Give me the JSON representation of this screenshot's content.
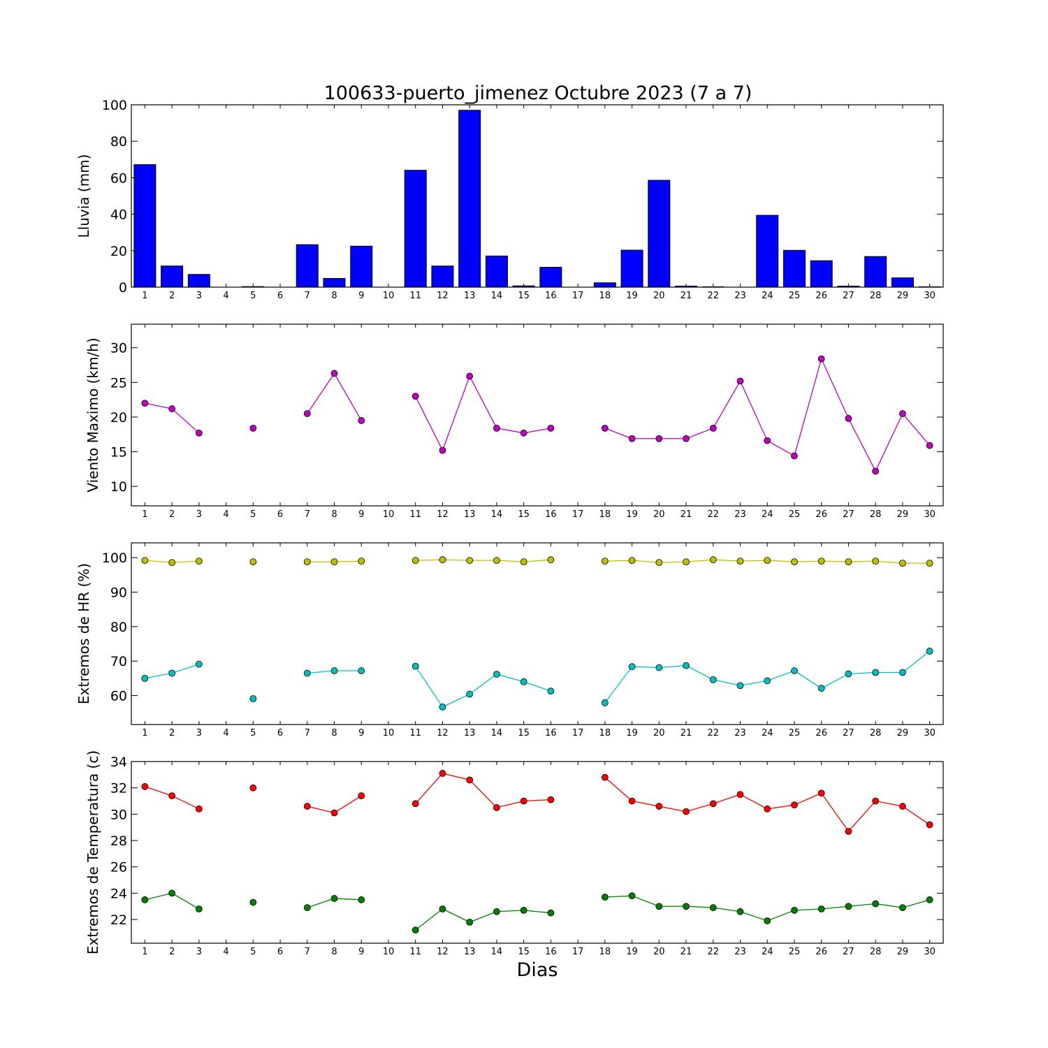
{
  "title": "100633-puerto_jimenez Octubre 2023  (7 a 7)",
  "xlabel": "Dias",
  "colors": {
    "bar_fill": "#0000ff",
    "wind": "#bf00bf",
    "hr_max": "#bfbf00",
    "hr_min": "#00bfbf",
    "temp_max": "#ff0000",
    "temp_min": "#008000"
  },
  "chart_data": [
    {
      "type": "bar",
      "ylabel": "Lluvia (mm)",
      "x": [
        1,
        2,
        3,
        4,
        5,
        6,
        7,
        8,
        9,
        10,
        11,
        12,
        13,
        14,
        15,
        16,
        17,
        18,
        19,
        20,
        21,
        22,
        23,
        24,
        25,
        26,
        27,
        28,
        29,
        30
      ],
      "values": [
        67.2,
        11.6,
        7.0,
        null,
        0.3,
        null,
        23.3,
        4.8,
        22.5,
        null,
        64.1,
        11.6,
        97.0,
        17.1,
        0.7,
        10.9,
        null,
        2.4,
        20.3,
        58.6,
        0.6,
        0.2,
        null,
        39.4,
        20.2,
        14.5,
        0.6,
        16.8,
        5.1,
        0.2
      ],
      "ylim": [
        0,
        100
      ],
      "yticks": [
        0,
        20,
        40,
        60,
        80,
        100
      ],
      "xticks": [
        1,
        2,
        3,
        4,
        5,
        6,
        7,
        8,
        9,
        10,
        11,
        12,
        13,
        14,
        15,
        16,
        17,
        18,
        19,
        20,
        21,
        22,
        23,
        24,
        25,
        26,
        27,
        28,
        29,
        30
      ],
      "xlim": [
        0.5,
        30.5
      ]
    },
    {
      "type": "line",
      "ylabel": "Viento Maximo (km/h)",
      "x": [
        1,
        2,
        3,
        4,
        5,
        6,
        7,
        8,
        9,
        10,
        11,
        12,
        13,
        14,
        15,
        16,
        17,
        18,
        19,
        20,
        21,
        22,
        23,
        24,
        25,
        26,
        27,
        28,
        29,
        30
      ],
      "series": [
        {
          "values": [
            22.0,
            21.2,
            17.7,
            null,
            18.4,
            null,
            20.5,
            26.3,
            19.5,
            null,
            23.0,
            15.2,
            25.9,
            18.4,
            17.7,
            18.4,
            null,
            18.4,
            16.9,
            16.9,
            16.9,
            18.4,
            25.2,
            16.6,
            14.4,
            28.4,
            19.8,
            12.2,
            20.5,
            15.9
          ]
        }
      ],
      "ylim": [
        7.2,
        33.4
      ],
      "yticks": [
        10,
        15,
        20,
        25,
        30
      ],
      "xticks": [
        1,
        2,
        3,
        4,
        5,
        6,
        7,
        8,
        9,
        10,
        11,
        12,
        13,
        14,
        15,
        16,
        17,
        18,
        19,
        20,
        21,
        22,
        23,
        24,
        25,
        26,
        27,
        28,
        29,
        30
      ],
      "xlim": [
        0.5,
        30.5
      ]
    },
    {
      "type": "line",
      "ylabel": "Extremos de HR (%)",
      "x": [
        1,
        2,
        3,
        4,
        5,
        6,
        7,
        8,
        9,
        10,
        11,
        12,
        13,
        14,
        15,
        16,
        17,
        18,
        19,
        20,
        21,
        22,
        23,
        24,
        25,
        26,
        27,
        28,
        29,
        30
      ],
      "series": [
        {
          "values": [
            99.2,
            98.6,
            99.0,
            null,
            98.8,
            null,
            98.8,
            98.8,
            99.0,
            null,
            99.2,
            99.4,
            99.2,
            99.2,
            98.8,
            99.4,
            null,
            99.0,
            99.2,
            98.6,
            98.8,
            99.4,
            99.0,
            99.2,
            98.8,
            99.0,
            98.8,
            99.0,
            98.4,
            98.4
          ]
        },
        {
          "values": [
            65.0,
            66.5,
            69.1,
            null,
            59.1,
            null,
            66.5,
            67.2,
            67.2,
            null,
            68.5,
            56.7,
            60.4,
            66.2,
            64.0,
            61.3,
            null,
            57.9,
            68.4,
            68.1,
            68.7,
            64.6,
            62.9,
            64.3,
            67.2,
            62.1,
            66.3,
            66.7,
            66.7,
            72.9
          ]
        }
      ],
      "ylim": [
        51.6,
        104.3
      ],
      "yticks": [
        60,
        70,
        80,
        90,
        100
      ],
      "xticks": [
        1,
        2,
        3,
        4,
        5,
        6,
        7,
        8,
        9,
        10,
        11,
        12,
        13,
        14,
        15,
        16,
        17,
        18,
        19,
        20,
        21,
        22,
        23,
        24,
        25,
        26,
        27,
        28,
        29,
        30
      ],
      "xlim": [
        0.5,
        30.5
      ]
    },
    {
      "type": "line",
      "ylabel": "Extremos de Temperatura (c)",
      "x": [
        1,
        2,
        3,
        4,
        5,
        6,
        7,
        8,
        9,
        10,
        11,
        12,
        13,
        14,
        15,
        16,
        17,
        18,
        19,
        20,
        21,
        22,
        23,
        24,
        25,
        26,
        27,
        28,
        29,
        30
      ],
      "series": [
        {
          "values": [
            32.1,
            31.4,
            30.4,
            null,
            32.0,
            null,
            30.6,
            30.1,
            31.4,
            null,
            30.8,
            33.1,
            32.6,
            30.5,
            31.0,
            31.1,
            null,
            32.8,
            31.0,
            30.6,
            30.2,
            30.8,
            31.5,
            30.4,
            30.7,
            31.6,
            28.7,
            31.0,
            30.6,
            29.2
          ]
        },
        {
          "values": [
            23.5,
            24.0,
            22.8,
            null,
            23.3,
            null,
            22.9,
            23.6,
            23.5,
            null,
            21.2,
            22.8,
            21.8,
            22.6,
            22.7,
            22.5,
            null,
            23.7,
            23.8,
            23.0,
            23.0,
            22.9,
            22.6,
            21.9,
            22.7,
            22.8,
            23.0,
            23.2,
            22.9,
            23.5
          ]
        }
      ],
      "ylim": [
        20.2,
        34.0
      ],
      "yticks": [
        22,
        24,
        26,
        28,
        30,
        32,
        34
      ],
      "xticks": [
        1,
        2,
        3,
        4,
        5,
        6,
        7,
        8,
        9,
        10,
        11,
        12,
        13,
        14,
        15,
        16,
        17,
        18,
        19,
        20,
        21,
        22,
        23,
        24,
        25,
        26,
        27,
        28,
        29,
        30
      ],
      "xlim": [
        0.5,
        30.5
      ]
    }
  ]
}
